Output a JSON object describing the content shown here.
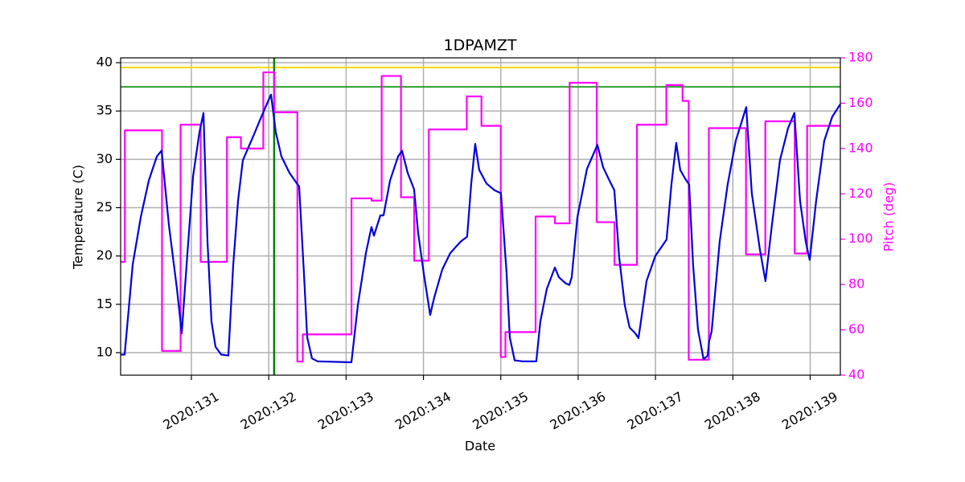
{
  "chart_data": {
    "type": "line",
    "title": "1DPAMZT",
    "xlabel": "Date",
    "ylabel": "Temperature (C)",
    "y2label": "Pitch (deg)",
    "y2label_color": "#ff00ff",
    "xlim": [
      130.085,
      139.39
    ],
    "ylim": [
      7.67,
      40.5
    ],
    "y2lim": [
      40,
      180
    ],
    "xticks": [
      {
        "value": 131,
        "label": "2020:131"
      },
      {
        "value": 132,
        "label": "2020:132"
      },
      {
        "value": 133,
        "label": "2020:133"
      },
      {
        "value": 134,
        "label": "2020:134"
      },
      {
        "value": 135,
        "label": "2020:135"
      },
      {
        "value": 136,
        "label": "2020:136"
      },
      {
        "value": 137,
        "label": "2020:137"
      },
      {
        "value": 138,
        "label": "2020:138"
      },
      {
        "value": 139,
        "label": "2020:139"
      }
    ],
    "yticks": [
      10,
      15,
      20,
      25,
      30,
      35,
      40
    ],
    "y2ticks": [
      40,
      60,
      80,
      100,
      120,
      140,
      160,
      180
    ],
    "grid": true,
    "hlines": [
      {
        "y": 39.5,
        "color": "#ffd700"
      },
      {
        "y": 37.5,
        "color": "#2ca02c"
      }
    ],
    "vlines": [
      {
        "x": 132.07,
        "color": "#008000"
      }
    ],
    "series": [
      {
        "color": "#ff00ff",
        "axis": "y2",
        "drawstyle": "steps-post",
        "x": [
          130.085,
          130.14,
          130.62,
          130.86,
          131.12,
          131.46,
          131.64,
          131.93,
          132.07,
          132.37,
          132.44,
          133.07,
          133.33,
          133.46,
          133.71,
          133.88,
          134.07,
          134.56,
          134.75,
          135.0,
          135.06,
          135.45,
          135.7,
          135.89,
          136.24,
          136.47,
          136.76,
          137.14,
          137.35,
          137.43,
          137.69,
          138.17,
          138.42,
          138.8,
          138.96,
          139.39
        ],
        "values": [
          90,
          148,
          50.7,
          150.5,
          90,
          145,
          140,
          173.6,
          156,
          46,
          58,
          118,
          117,
          172,
          118.5,
          90.5,
          148.4,
          163,
          150,
          48,
          59,
          110,
          107,
          169,
          107.5,
          88.7,
          150.5,
          168,
          161,
          46.8,
          149,
          93.3,
          152,
          93.7,
          150,
          150
        ]
      },
      {
        "color": "#0000dd",
        "axis": "y",
        "x": [
          130.085,
          130.137,
          130.241,
          130.345,
          130.449,
          130.553,
          130.615,
          130.709,
          130.813,
          130.875,
          130.938,
          131.021,
          131.104,
          131.156,
          131.208,
          131.26,
          131.312,
          131.385,
          131.478,
          131.541,
          131.603,
          131.665,
          131.8,
          131.904,
          132.029,
          132.091,
          132.164,
          132.268,
          132.372,
          132.393,
          132.455,
          132.497,
          132.559,
          132.632,
          133.069,
          133.152,
          133.256,
          133.328,
          133.36,
          133.443,
          133.484,
          133.568,
          133.672,
          133.723,
          133.796,
          133.879,
          133.931,
          134.004,
          134.087,
          134.139,
          134.243,
          134.347,
          134.482,
          134.565,
          134.617,
          134.669,
          134.721,
          134.815,
          134.919,
          135.002,
          135.075,
          135.116,
          135.179,
          135.283,
          135.459,
          135.511,
          135.595,
          135.699,
          135.751,
          135.834,
          135.886,
          135.917,
          135.99,
          136.114,
          136.249,
          136.322,
          136.405,
          136.468,
          136.53,
          136.603,
          136.665,
          136.738,
          136.78,
          136.811,
          136.884,
          136.998,
          137.143,
          137.206,
          137.268,
          137.32,
          137.383,
          137.435,
          137.486,
          137.549,
          137.622,
          137.674,
          137.694,
          137.726,
          137.83,
          137.933,
          138.037,
          138.173,
          138.245,
          138.349,
          138.422,
          138.505,
          138.609,
          138.713,
          138.796,
          138.869,
          138.942,
          138.994,
          139.077,
          139.181,
          139.285,
          139.389
        ],
        "values": [
          9.8,
          9.8,
          19.1,
          24.0,
          27.8,
          30.3,
          30.9,
          23.2,
          16.6,
          12.0,
          19.1,
          28.2,
          32.8,
          34.8,
          21.5,
          13.2,
          10.6,
          9.8,
          9.7,
          19.1,
          25.7,
          29.9,
          32.4,
          34.4,
          36.7,
          32.8,
          30.3,
          28.6,
          27.4,
          27.2,
          18.2,
          11.6,
          9.4,
          9.1,
          9.0,
          14.9,
          20.3,
          23.0,
          22.1,
          24.2,
          24.2,
          27.8,
          30.3,
          30.9,
          28.6,
          26.9,
          22.4,
          18.2,
          13.9,
          15.7,
          18.6,
          20.3,
          21.5,
          22.0,
          27.4,
          31.6,
          28.9,
          27.5,
          26.8,
          26.5,
          18.2,
          11.6,
          9.2,
          9.1,
          9.1,
          13.2,
          16.6,
          18.8,
          17.8,
          17.2,
          17.0,
          17.8,
          24.0,
          29.0,
          31.5,
          29.2,
          27.8,
          26.8,
          19.9,
          14.9,
          12.6,
          12.0,
          11.5,
          13.2,
          17.4,
          20.0,
          21.7,
          27.4,
          31.7,
          28.9,
          28.0,
          27.4,
          19.1,
          12.4,
          9.3,
          9.7,
          11.2,
          12.2,
          21.5,
          27.4,
          31.9,
          35.4,
          26.5,
          20.7,
          17.4,
          23.2,
          29.9,
          33.2,
          34.8,
          25.7,
          21.5,
          19.6,
          25.7,
          31.9,
          34.4,
          35.7
        ]
      }
    ]
  }
}
